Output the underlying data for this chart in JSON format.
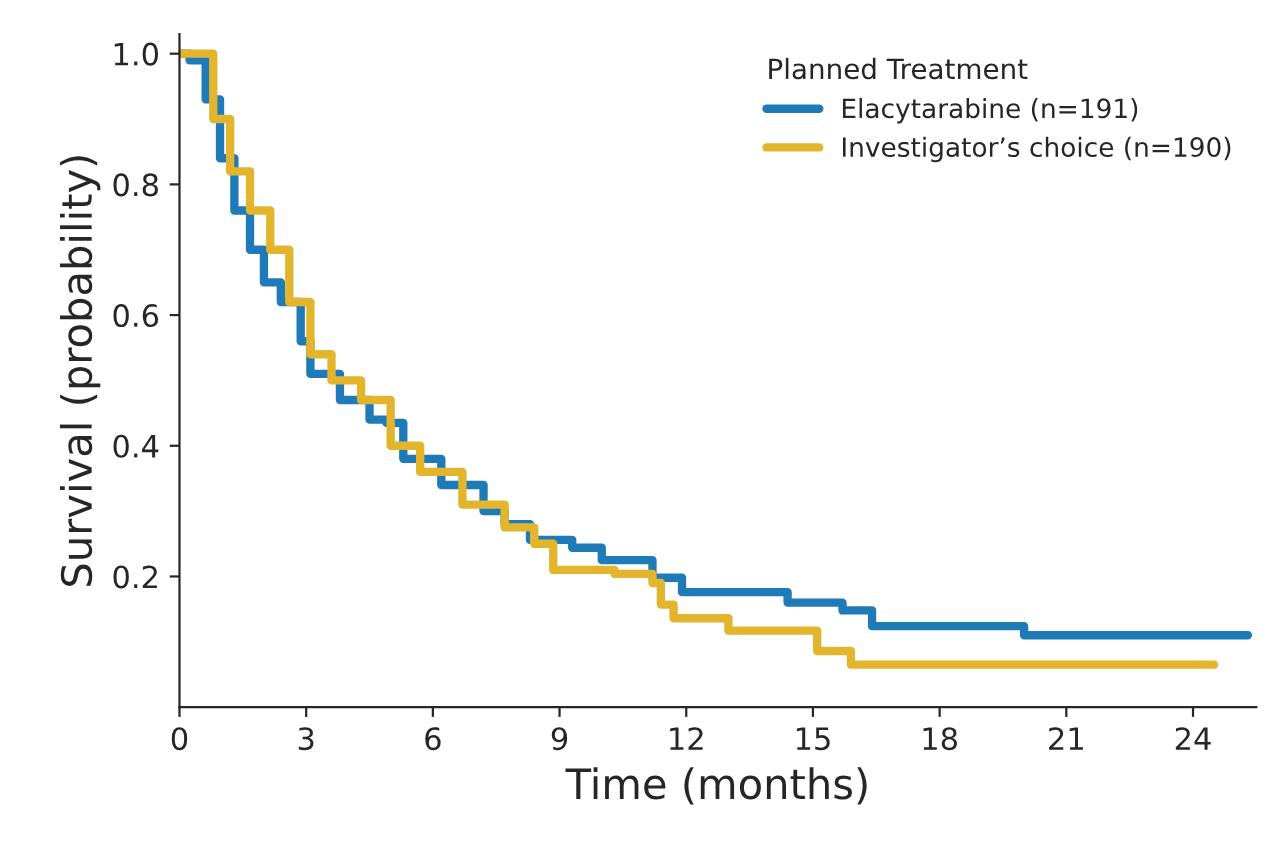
{
  "chart_data": {
    "type": "step",
    "xlabel": "Time (months)",
    "ylabel": "Survival (probability)",
    "legend_title": "Planned Treatment",
    "legend": "top right",
    "grid": false,
    "xlim": [
      0,
      25.5
    ],
    "xticks": [
      0,
      3,
      6,
      9,
      12,
      15,
      18,
      21,
      24
    ],
    "ylim": [
      0,
      1.03
    ],
    "yticks": [
      {
        "value": 0.2,
        "label": "0.2"
      },
      {
        "value": 0.4,
        "label": "0.4"
      },
      {
        "value": 0.6,
        "label": "0.6"
      },
      {
        "value": 0.8,
        "label": "0.8"
      },
      {
        "value": 1.0,
        "label": "1.0"
      }
    ],
    "series": [
      {
        "name": "Elacytarabine (n=191)",
        "color": "#1f7ab8",
        "x": [
          0,
          0.24,
          0.62,
          0.96,
          1.3,
          1.67,
          2.0,
          2.4,
          2.87,
          3.1,
          3.8,
          4.5,
          4.9,
          5.3,
          6.2,
          7.2,
          7.7,
          8.3,
          9.3,
          10.0,
          11.2,
          11.9,
          14.4,
          15.7,
          16.4,
          20.0,
          25.3
        ],
        "values": [
          1.0,
          0.99,
          0.93,
          0.84,
          0.76,
          0.7,
          0.65,
          0.62,
          0.56,
          0.51,
          0.47,
          0.44,
          0.435,
          0.38,
          0.34,
          0.3,
          0.28,
          0.256,
          0.244,
          0.225,
          0.198,
          0.176,
          0.16,
          0.148,
          0.124,
          0.11,
          0.11
        ]
      },
      {
        "name": "Investigator’s choice (n=190)",
        "color": "#e3b52c",
        "x": [
          0,
          0.4,
          0.8,
          1.2,
          1.67,
          2.15,
          2.6,
          3.1,
          3.6,
          4.3,
          5.0,
          5.7,
          6.7,
          7.7,
          8.4,
          8.85,
          10.3,
          11.2,
          11.4,
          11.7,
          13.0,
          15.1,
          15.9,
          24.5
        ],
        "values": [
          1.0,
          1.0,
          0.9,
          0.82,
          0.76,
          0.7,
          0.62,
          0.54,
          0.5,
          0.47,
          0.4,
          0.36,
          0.31,
          0.275,
          0.25,
          0.21,
          0.204,
          0.19,
          0.157,
          0.136,
          0.117,
          0.086,
          0.065,
          0.065
        ]
      }
    ]
  }
}
